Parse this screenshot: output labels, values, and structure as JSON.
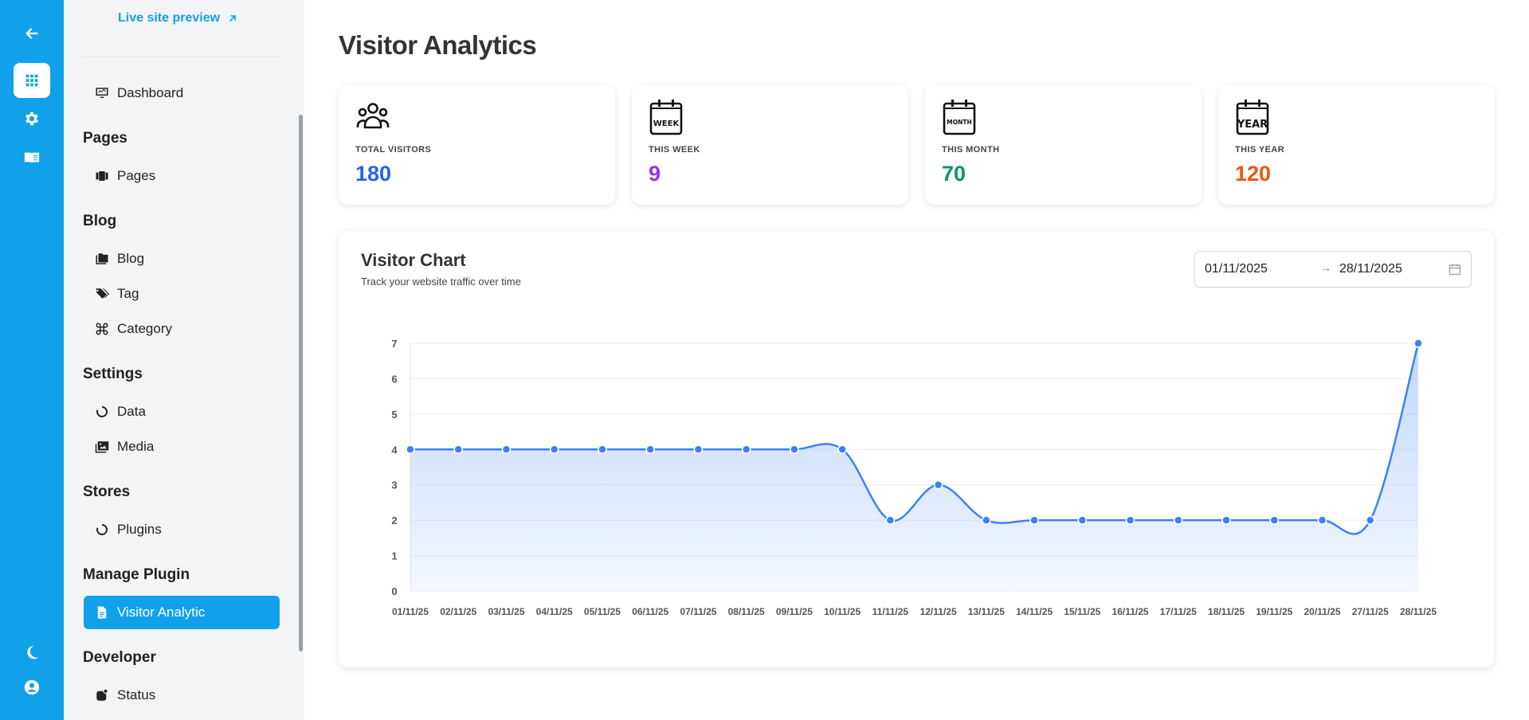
{
  "rail": {
    "icons": [
      "arrow-left-icon",
      "grid-icon",
      "gear-icon",
      "book-icon",
      "moon-icon",
      "user-circle-icon"
    ]
  },
  "sidebar": {
    "live_preview": "Live site preview",
    "dashboard": "Dashboard",
    "sections": {
      "pages": "Pages",
      "blog": "Blog",
      "settings": "Settings",
      "stores": "Stores",
      "manage_plugin": "Manage Plugin",
      "developer": "Developer"
    },
    "items": {
      "pages": "Pages",
      "blog": "Blog",
      "tag": "Tag",
      "category": "Category",
      "data": "Data",
      "media": "Media",
      "plugins": "Plugins",
      "visitor_analytic": "Visitor Analytic",
      "status": "Status"
    },
    "active_item": "Visitor Analytic"
  },
  "main": {
    "title": "Visitor Analytics",
    "stats": [
      {
        "label": "TOTAL VISITORS",
        "value": "180",
        "color": "#2563eb",
        "icon": "users-icon"
      },
      {
        "label": "THIS WEEK",
        "value": "9",
        "color": "#9333ea",
        "icon": "calendar-week-icon",
        "icon_text": "WEEK"
      },
      {
        "label": "THIS MONTH",
        "value": "70",
        "color": "#059669",
        "icon": "calendar-month-icon",
        "icon_text": "MONTH"
      },
      {
        "label": "THIS YEAR",
        "value": "120",
        "color": "#ea580c",
        "icon": "calendar-year-icon",
        "icon_text": "YEAR"
      }
    ],
    "chart_card": {
      "title": "Visitor Chart",
      "subtitle": "Track your website traffic over time",
      "date_start": "01/11/2025",
      "date_end": "28/11/2025"
    }
  },
  "colors": {
    "accent": "#11a1ea",
    "line": "#3b82f6"
  },
  "chart_data": {
    "type": "area",
    "title": "",
    "xlabel": "",
    "ylabel": "",
    "categories": [
      "01/11/25",
      "02/11/25",
      "03/11/25",
      "04/11/25",
      "05/11/25",
      "06/11/25",
      "07/11/25",
      "08/11/25",
      "09/11/25",
      "10/11/25",
      "11/11/25",
      "12/11/25",
      "13/11/25",
      "14/11/25",
      "15/11/25",
      "16/11/25",
      "17/11/25",
      "18/11/25",
      "19/11/25",
      "20/11/25",
      "27/11/25",
      "28/11/25"
    ],
    "values": [
      4,
      4,
      4,
      4,
      4,
      4,
      4,
      4,
      4,
      4,
      2,
      3,
      2,
      2,
      2,
      2,
      2,
      2,
      2,
      2,
      2,
      7
    ],
    "ylim": [
      0,
      7
    ],
    "yticks": [
      0,
      1,
      2,
      3,
      4,
      5,
      6,
      7
    ],
    "grid": true,
    "legend": "none",
    "smooth": true
  }
}
